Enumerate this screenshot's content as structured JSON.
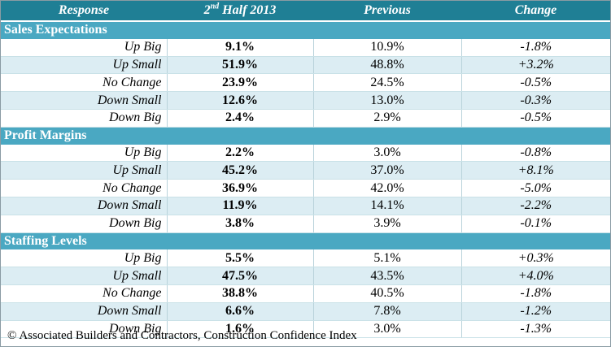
{
  "header": {
    "col_response": "Response",
    "col_current_main": "2",
    "col_current_sup": "nd",
    "col_current_rest": " Half 2013",
    "col_previous": "Previous",
    "col_change": "Change"
  },
  "sections": [
    {
      "title": "Sales Expectations",
      "rows": [
        {
          "response": "Up Big",
          "current": "9.1%",
          "previous": "10.9%",
          "change": "-1.8%"
        },
        {
          "response": "Up Small",
          "current": "51.9%",
          "previous": "48.8%",
          "change": "+3.2%"
        },
        {
          "response": "No Change",
          "current": "23.9%",
          "previous": "24.5%",
          "change": "-0.5%"
        },
        {
          "response": "Down Small",
          "current": "12.6%",
          "previous": "13.0%",
          "change": "-0.3%"
        },
        {
          "response": "Down Big",
          "current": "2.4%",
          "previous": "2.9%",
          "change": "-0.5%"
        }
      ]
    },
    {
      "title": "Profit Margins",
      "rows": [
        {
          "response": "Up Big",
          "current": "2.2%",
          "previous": "3.0%",
          "change": "-0.8%"
        },
        {
          "response": "Up Small",
          "current": "45.2%",
          "previous": "37.0%",
          "change": "+8.1%"
        },
        {
          "response": "No Change",
          "current": "36.9%",
          "previous": "42.0%",
          "change": "-5.0%"
        },
        {
          "response": "Down Small",
          "current": "11.9%",
          "previous": "14.1%",
          "change": "-2.2%"
        },
        {
          "response": "Down Big",
          "current": "3.8%",
          "previous": "3.9%",
          "change": "-0.1%"
        }
      ]
    },
    {
      "title": "Staffing Levels",
      "rows": [
        {
          "response": "Up Big",
          "current": "5.5%",
          "previous": "5.1%",
          "change": "+0.3%"
        },
        {
          "response": "Up Small",
          "current": "47.5%",
          "previous": "43.5%",
          "change": "+4.0%"
        },
        {
          "response": "No Change",
          "current": "38.8%",
          "previous": "40.5%",
          "change": "-1.8%"
        },
        {
          "response": "Down Small",
          "current": "6.6%",
          "previous": "7.8%",
          "change": "-1.2%"
        },
        {
          "response": "Down Big",
          "current": "1.6%",
          "previous": "3.0%",
          "change": "-1.3%"
        }
      ]
    }
  ],
  "footer": "© Associated Builders and Contractors, Construction Confidence Index",
  "colors": {
    "header_bg": "#1f7f95",
    "section_bg": "#4aa8c2",
    "alt_row_bg": "#dcedf3"
  }
}
